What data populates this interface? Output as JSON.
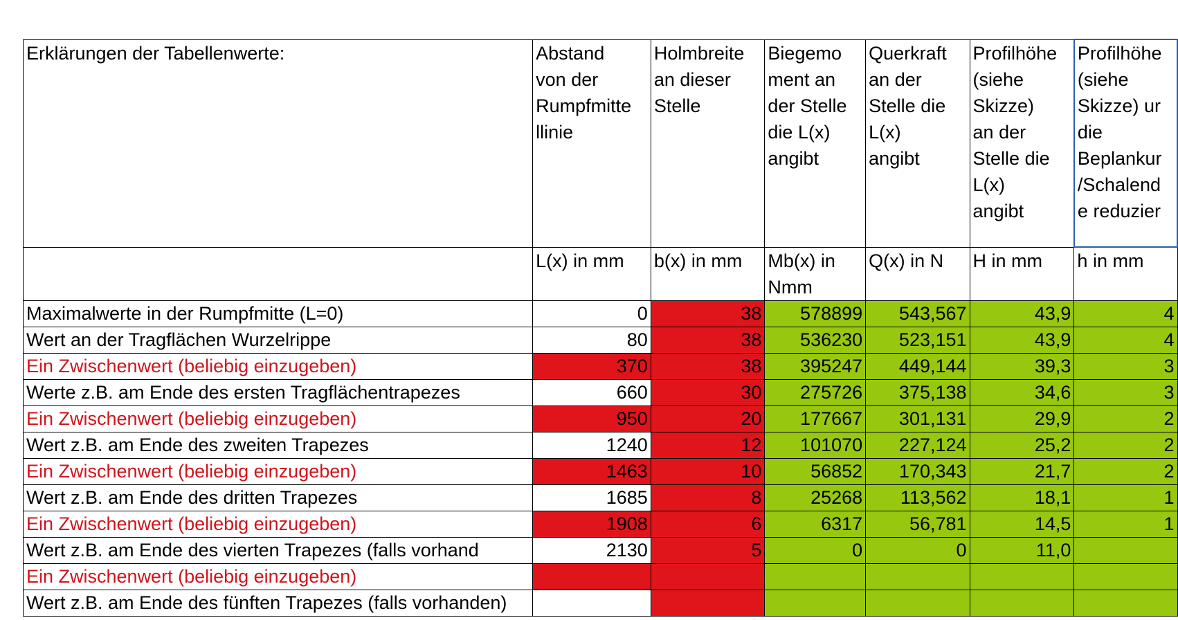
{
  "header": {
    "columns": [
      [
        "Erklärungen der Tabellenwerte:"
      ],
      [
        "Abstand",
        "von der",
        "Rumpfmitte",
        "llinie"
      ],
      [
        "Holmbreite",
        "an dieser",
        "Stelle"
      ],
      [
        "Biegemo",
        "ment an",
        "der Stelle",
        "die L(x)",
        "angibt"
      ],
      [
        "Querkraft",
        "an der",
        "Stelle die",
        "L(x)",
        "angibt"
      ],
      [
        "Profilhöhe",
        "(siehe",
        "Skizze)",
        "an der",
        "Stelle die",
        "L(x)",
        "angibt"
      ],
      [
        "Profilhöhe",
        "(siehe",
        "Skizze) ur",
        "die",
        "Beplankur",
        "/Schalend",
        "e reduzier"
      ]
    ]
  },
  "units": [
    "L(x) in mm",
    "b(x) in mm",
    "Mb(x) in Nmm",
    "Q(x) in N",
    "H in mm",
    "h in mm"
  ],
  "rows": [
    {
      "label": "Maximalwerte in der Rumpfmitte (L=0)",
      "cells": [
        "0",
        "38",
        "578899",
        "543,567",
        "43,9",
        "4"
      ]
    },
    {
      "label": "Wert an der Tragflächen Wurzelrippe",
      "cells": [
        "80",
        "38",
        "536230",
        "523,151",
        "43,9",
        "4"
      ]
    },
    {
      "label": "Ein Zwischenwert (beliebig einzugeben)",
      "color": "#d0141b",
      "cells": [
        "370",
        "38",
        "395247",
        "449,144",
        "39,3",
        "3"
      ]
    },
    {
      "label": "Werte z.B. am Ende des ersten Tragflächentrapezes",
      "cells": [
        "660",
        "30",
        "275726",
        "375,138",
        "34,6",
        "3"
      ]
    },
    {
      "label": "Ein Zwischenwert (beliebig einzugeben)",
      "color": "#d0141b",
      "cells": [
        "950",
        "20",
        "177667",
        "301,131",
        "29,9",
        "2"
      ]
    },
    {
      "label": "Wert z.B. am Ende des zweiten Trapezes",
      "cells": [
        "1240",
        "12",
        "101070",
        "227,124",
        "25,2",
        "2"
      ]
    },
    {
      "label": "Ein Zwischenwert (beliebig einzugeben)",
      "color": "#d0141b",
      "cells": [
        "1463",
        "10",
        "56852",
        "170,343",
        "21,7",
        "2"
      ]
    },
    {
      "label": "Wert z.B. am Ende des dritten Trapezes",
      "cells": [
        "1685",
        "8",
        "25268",
        "113,562",
        "18,1",
        "1"
      ]
    },
    {
      "label": "Ein Zwischenwert (beliebig einzugeben)",
      "color": "#d0141b",
      "cells": [
        "1908",
        "6",
        "6317",
        "56,781",
        "14,5",
        "1"
      ]
    },
    {
      "label": "Wert z.B. am Ende des vierten Trapezes (falls vorhand",
      "cells": [
        "2130",
        "5",
        "0",
        "0",
        "11,0",
        null
      ]
    },
    {
      "label": "Ein Zwischenwert (beliebig einzugeben)",
      "color": "#d0141b",
      "cells": [
        null,
        null,
        null,
        null,
        null,
        null
      ]
    },
    {
      "label": "Wert z.B. am Ende des fünften Trapezes (falls vorhanden)",
      "cells": [
        null,
        null,
        null,
        null,
        null,
        null
      ]
    }
  ]
}
